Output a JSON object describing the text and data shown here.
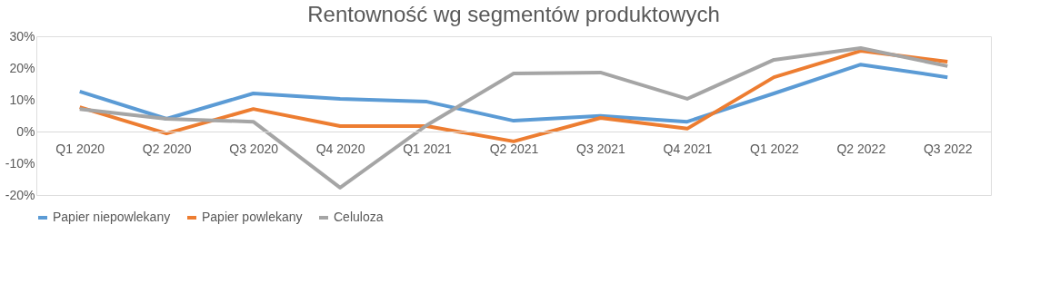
{
  "chart_data": {
    "type": "line",
    "title": "Rentowność wg segmentów produktowych",
    "categories": [
      "Q1 2020",
      "Q2 2020",
      "Q3 2020",
      "Q4 2020",
      "Q1 2021",
      "Q2 2021",
      "Q3 2021",
      "Q4 2021",
      "Q1 2022",
      "Q2 2022",
      "Q3 2022"
    ],
    "series": [
      {
        "name": "Papier niepowlekany",
        "color": "#5b9bd5",
        "values": [
          12.6,
          4.0,
          12.0,
          10.3,
          9.4,
          3.4,
          4.9,
          3.1,
          12.0,
          21.1,
          17.1
        ]
      },
      {
        "name": "Papier powlekany",
        "color": "#ed7d31",
        "values": [
          7.7,
          -0.6,
          7.1,
          1.7,
          1.7,
          -3.1,
          4.3,
          0.9,
          17.1,
          25.4,
          22.0
        ]
      },
      {
        "name": "Celuloza",
        "color": "#a5a5a5",
        "values": [
          7.1,
          4.0,
          3.1,
          -17.7,
          2.0,
          18.3,
          18.6,
          10.3,
          22.6,
          26.3,
          20.6
        ]
      }
    ],
    "ylim": [
      -20,
      30
    ],
    "yticks": [
      {
        "value": -20,
        "label": "-20%"
      },
      {
        "value": -10,
        "label": "-10%"
      },
      {
        "value": 0,
        "label": "0%"
      },
      {
        "value": 10,
        "label": "10%"
      },
      {
        "value": 20,
        "label": "20%"
      },
      {
        "value": 30,
        "label": "30%"
      }
    ],
    "grid": false,
    "legend": "bottom",
    "marker": "none",
    "line_style": "solid"
  }
}
